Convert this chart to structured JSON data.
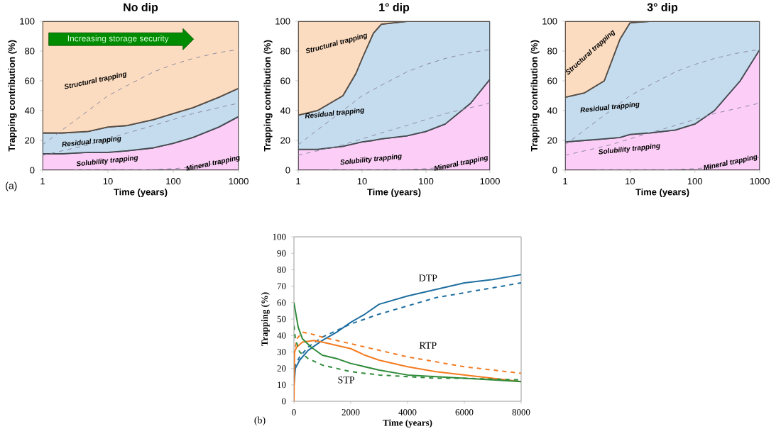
{
  "chart_data": [
    {
      "type": "area",
      "title": "No dip",
      "xlabel": "Time (years)",
      "ylabel": "Trapping contribution (%)",
      "log": "x",
      "stacked": true,
      "x": [
        1,
        2,
        5,
        10,
        20,
        50,
        100,
        200,
        500,
        1000
      ],
      "xlim": [
        1,
        1000
      ],
      "xticks": [
        1,
        10,
        100,
        1000
      ],
      "ylim": [
        0,
        100
      ],
      "yticks": [
        0,
        20,
        40,
        60,
        80,
        100
      ],
      "series": [
        {
          "type": "area",
          "color": "#fccdf6",
          "values": [
            11,
            11,
            12,
            12,
            13,
            15,
            18,
            22,
            29,
            36
          ]
        },
        {
          "type": "area",
          "color": "#c5dcee",
          "values": [
            14,
            14,
            14,
            17,
            17,
            19,
            20,
            20,
            20,
            19
          ]
        },
        {
          "type": "area",
          "color": "#fcdcc0",
          "values": [
            75,
            75,
            74,
            71,
            70,
            66,
            62,
            58,
            51,
            45
          ]
        },
        {
          "type": "line",
          "color": "#8a8aa0",
          "line_style": "dashed",
          "x": [
            1,
            2,
            5,
            10,
            20,
            50,
            100,
            200,
            500,
            1000
          ],
          "values": [
            17,
            27,
            40,
            50,
            57,
            66,
            71,
            75,
            79,
            81
          ]
        },
        {
          "type": "line",
          "color": "#8a8aa0",
          "line_style": "dashed",
          "x": [
            1,
            2,
            5,
            10,
            20,
            50,
            100,
            200,
            500,
            1000
          ],
          "values": [
            10,
            13,
            17,
            21,
            25,
            30,
            34,
            38,
            42,
            45
          ]
        },
        {
          "type": "line",
          "color": "#8a8aa0",
          "line_style": "dashed",
          "x": [
            3,
            10,
            30,
            100,
            200,
            500,
            1000
          ],
          "values": [
            0,
            0,
            0,
            1,
            2,
            5,
            9
          ]
        }
      ],
      "annotations": [
        "Structural trapping",
        "Residual trapping",
        "Solubility trapping",
        "Mineral trapping",
        "Increasing storage security",
        "(a)"
      ]
    },
    {
      "type": "area",
      "title": "1° dip",
      "xlabel": "Time (years)",
      "ylabel": "Trapping contribution (%)",
      "log": "x",
      "stacked": true,
      "x": [
        1,
        2,
        5,
        8,
        10,
        15,
        20,
        50,
        100,
        200,
        500,
        1000
      ],
      "xlim": [
        1,
        1000
      ],
      "xticks": [
        1,
        10,
        100,
        1000
      ],
      "ylim": [
        0,
        100
      ],
      "yticks": [
        0,
        20,
        40,
        60,
        80,
        100
      ],
      "series": [
        {
          "type": "area",
          "color": "#fccdf6",
          "values": [
            14,
            14,
            16,
            18,
            19,
            20,
            21,
            23,
            26,
            31,
            45,
            61
          ]
        },
        {
          "type": "area",
          "color": "#c5dcee",
          "values": [
            23,
            26,
            34,
            47,
            56,
            72,
            77,
            77,
            74,
            69,
            55,
            39
          ]
        },
        {
          "type": "area",
          "color": "#fcdcc0",
          "values": [
            63,
            60,
            50,
            35,
            25,
            8,
            2,
            0,
            0,
            0,
            0,
            0
          ]
        },
        {
          "type": "line",
          "color": "#8a8aa0",
          "line_style": "dashed",
          "x": [
            1,
            2,
            5,
            10,
            20,
            50,
            100,
            200,
            500,
            1000
          ],
          "values": [
            17,
            27,
            40,
            50,
            57,
            66,
            71,
            75,
            79,
            81
          ]
        },
        {
          "type": "line",
          "color": "#8a8aa0",
          "line_style": "dashed",
          "x": [
            1,
            2,
            5,
            10,
            20,
            50,
            100,
            200,
            500,
            1000
          ],
          "values": [
            10,
            13,
            17,
            21,
            25,
            30,
            34,
            38,
            42,
            45
          ]
        },
        {
          "type": "line",
          "color": "#8a8aa0",
          "line_style": "dashed",
          "x": [
            3,
            10,
            30,
            100,
            200,
            500,
            1000
          ],
          "values": [
            0,
            0,
            0,
            1,
            2,
            5,
            9
          ]
        }
      ],
      "annotations": [
        "Structural trapping",
        "Residual trapping",
        "Solubility trapping",
        "Mineral trapping"
      ]
    },
    {
      "type": "area",
      "title": "3° dip",
      "xlabel": "Time (years)",
      "ylabel": "Trapping contribution (%)",
      "log": "x",
      "stacked": true,
      "x": [
        1,
        2,
        4,
        7,
        10,
        20,
        50,
        100,
        200,
        500,
        1000
      ],
      "xlim": [
        1,
        1000
      ],
      "xticks": [
        1,
        10,
        100,
        1000
      ],
      "ylim": [
        0,
        100
      ],
      "yticks": [
        0,
        20,
        40,
        60,
        80,
        100
      ],
      "series": [
        {
          "type": "area",
          "color": "#fccdf6",
          "values": [
            19,
            20,
            21,
            22,
            24,
            25,
            27,
            31,
            40,
            60,
            81
          ]
        },
        {
          "type": "area",
          "color": "#c5dcee",
          "values": [
            30,
            32,
            39,
            66,
            75,
            75,
            73,
            69,
            60,
            40,
            19
          ]
        },
        {
          "type": "area",
          "color": "#fcdcc0",
          "values": [
            51,
            48,
            40,
            12,
            1,
            0,
            0,
            0,
            0,
            0,
            0
          ]
        },
        {
          "type": "line",
          "color": "#8a8aa0",
          "line_style": "dashed",
          "x": [
            1,
            2,
            5,
            10,
            20,
            50,
            100,
            200,
            500,
            1000
          ],
          "values": [
            17,
            27,
            40,
            50,
            57,
            66,
            71,
            75,
            79,
            81
          ]
        },
        {
          "type": "line",
          "color": "#8a8aa0",
          "line_style": "dashed",
          "x": [
            1,
            2,
            5,
            10,
            20,
            50,
            100,
            200,
            500,
            1000
          ],
          "values": [
            10,
            13,
            17,
            21,
            25,
            30,
            34,
            38,
            42,
            45
          ]
        },
        {
          "type": "line",
          "color": "#8a8aa0",
          "line_style": "dashed",
          "x": [
            3,
            10,
            30,
            100,
            200,
            500,
            1000
          ],
          "values": [
            0,
            0,
            0,
            1,
            2,
            5,
            9
          ]
        }
      ],
      "annotations": [
        "Structural trapping",
        "Residual trapping",
        "Solubility trapping",
        "Mineral trapping"
      ]
    },
    {
      "type": "line",
      "xlabel": "Time (years)",
      "ylabel": "Trapping (%)",
      "xlim": [
        0,
        8000
      ],
      "xticks": [
        0,
        2000,
        4000,
        6000,
        8000
      ],
      "ylim": [
        0,
        100
      ],
      "yticks": [
        0,
        10,
        20,
        30,
        40,
        50,
        60,
        70,
        80,
        90,
        100
      ],
      "series": [
        {
          "color": "#1f6fa0",
          "line_style": "solid",
          "x": [
            0,
            50,
            200,
            500,
            1000,
            1500,
            2000,
            2500,
            3000,
            4000,
            5000,
            6000,
            7000,
            8000
          ],
          "values": [
            10,
            20,
            25,
            31,
            37,
            42,
            48,
            53,
            59,
            64,
            68,
            72,
            74,
            77
          ]
        },
        {
          "color": "#1f6fa0",
          "line_style": "dashed",
          "x": [
            0,
            50,
            200,
            500,
            1000,
            2000,
            3000,
            4000,
            5000,
            6000,
            7000,
            8000
          ],
          "values": [
            15,
            22,
            27,
            33,
            39,
            47,
            53,
            58,
            63,
            66,
            69,
            72
          ]
        },
        {
          "color": "#f47b20",
          "line_style": "solid",
          "x": [
            0,
            20,
            100,
            300,
            700,
            1000,
            1500,
            2000,
            2500,
            3000,
            4000,
            5000,
            6000,
            7000,
            8000
          ],
          "values": [
            0,
            30,
            33,
            36,
            37,
            36,
            34,
            32,
            28,
            25,
            21,
            18,
            16,
            14,
            12
          ]
        },
        {
          "color": "#f47b20",
          "line_style": "dashed",
          "x": [
            0,
            100,
            300,
            600,
            1000,
            2000,
            3000,
            4000,
            5000,
            6000,
            7000,
            8000
          ],
          "values": [
            28,
            38,
            42,
            41,
            39,
            35,
            31,
            27,
            24,
            21,
            19,
            17
          ]
        },
        {
          "color": "#2e8b3a",
          "line_style": "solid",
          "x": [
            0,
            50,
            150,
            300,
            600,
            1000,
            1500,
            2000,
            2500,
            3000,
            4000,
            5000,
            6000,
            7000,
            8000
          ],
          "values": [
            60,
            55,
            45,
            38,
            33,
            28,
            26,
            23,
            21,
            19,
            16,
            15,
            14,
            13,
            12
          ]
        },
        {
          "color": "#2e8b3a",
          "line_style": "dashed",
          "x": [
            0,
            50,
            200,
            500,
            1000,
            2000,
            3000,
            4000,
            5000,
            6000,
            8000
          ],
          "values": [
            46,
            38,
            30,
            26,
            22,
            18,
            16,
            15,
            14,
            14,
            13
          ]
        }
      ],
      "annotations": [
        "DTP",
        "RTP",
        "STP",
        "(b)"
      ]
    }
  ]
}
